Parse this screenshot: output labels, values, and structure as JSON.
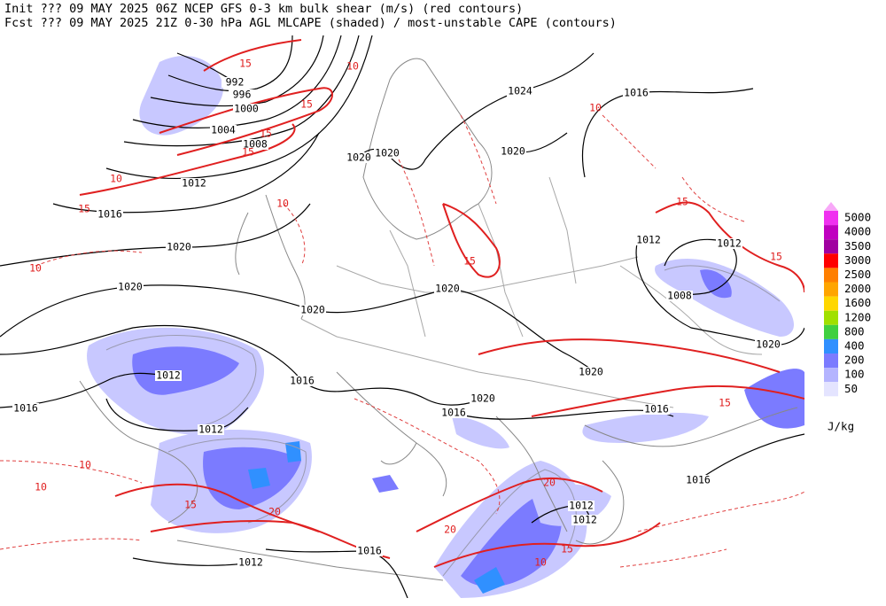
{
  "header": {
    "line1": "Init  ??? 09 MAY 2025 06Z  NCEP GFS 0-3 km bulk shear (m/s) (red contours)",
    "line2": "Fcst ??? 09 MAY 2025 21Z  0-30 hPa AGL MLCAPE (shaded) / most-unstable CAPE (contours)"
  },
  "legend": {
    "levels": [
      {
        "value": 5000,
        "color": "#f030f0"
      },
      {
        "value": 4000,
        "color": "#c000c0"
      },
      {
        "value": 3500,
        "color": "#a000a0"
      },
      {
        "value": 3000,
        "color": "#ff0000"
      },
      {
        "value": 2500,
        "color": "#ff7f00"
      },
      {
        "value": 2000,
        "color": "#ffa500"
      },
      {
        "value": 1600,
        "color": "#ffd700"
      },
      {
        "value": 1200,
        "color": "#a0e000"
      },
      {
        "value": 800,
        "color": "#40d040"
      },
      {
        "value": 400,
        "color": "#3090ff"
      },
      {
        "value": 200,
        "color": "#7b7bff"
      },
      {
        "value": 100,
        "color": "#b4b4ff"
      },
      {
        "value": 50,
        "color": "#e4e4ff"
      }
    ],
    "unit": "J/kg"
  },
  "isobar_labels": [
    992,
    996,
    1000,
    1004,
    1008,
    1012,
    1016,
    1020,
    1020,
    1020,
    1020,
    1020,
    1024,
    1016,
    1020,
    1012,
    1012,
    1008,
    1020,
    1020,
    1020,
    1020,
    1016,
    1012,
    1016,
    1016,
    1016,
    1012,
    1016,
    1016,
    1012,
    1012,
    1012
  ],
  "shear_labels": [
    15,
    10,
    15,
    15,
    15,
    10,
    15,
    10,
    10,
    15,
    10,
    15,
    15,
    20,
    20,
    15,
    10,
    10,
    15,
    20,
    15,
    10
  ]
}
